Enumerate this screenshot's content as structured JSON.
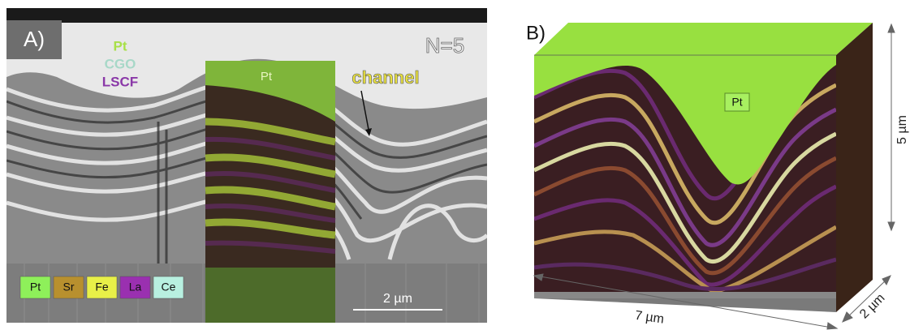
{
  "panel_a": {
    "label": "A)",
    "layers": [
      "Pt",
      "CGO",
      "LSCF"
    ],
    "sample": "N=5",
    "overlay_label": "Pt",
    "annotation": "channel",
    "legend": [
      {
        "label": "Pt",
        "color": "#8ef05a"
      },
      {
        "label": "Sr",
        "color": "#b8902e"
      },
      {
        "label": "Fe",
        "color": "#e8f048"
      },
      {
        "label": "La",
        "color": "#9a30b0"
      },
      {
        "label": "Ce",
        "color": "#b8f0e0"
      }
    ],
    "scale_bar": "2 µm"
  },
  "panel_b": {
    "label": "B)",
    "top_label": "Pt",
    "dimensions": {
      "height": "5 µm",
      "depth": "2 µm",
      "width": "7 µm"
    }
  }
}
